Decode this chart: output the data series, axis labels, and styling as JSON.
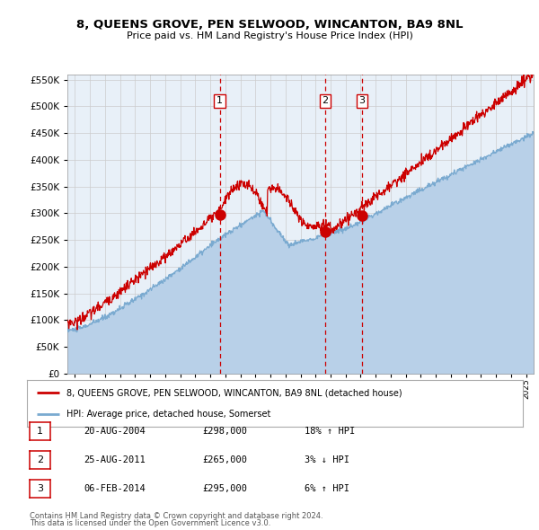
{
  "title": "8, QUEENS GROVE, PEN SELWOOD, WINCANTON, BA9 8NL",
  "subtitle": "Price paid vs. HM Land Registry's House Price Index (HPI)",
  "legend_label_red": "8, QUEENS GROVE, PEN SELWOOD, WINCANTON, BA9 8NL (detached house)",
  "legend_label_blue": "HPI: Average price, detached house, Somerset",
  "footnote1": "Contains HM Land Registry data © Crown copyright and database right 2024.",
  "footnote2": "This data is licensed under the Open Government Licence v3.0.",
  "transactions": [
    {
      "num": 1,
      "date": "20-AUG-2004",
      "price": "£298,000",
      "change": "18%",
      "dir": "↑",
      "year": 2004.64,
      "price_val": 298000
    },
    {
      "num": 2,
      "date": "25-AUG-2011",
      "price": "£265,000",
      "change": "3%",
      "dir": "↓",
      "year": 2011.64,
      "price_val": 265000
    },
    {
      "num": 3,
      "date": "06-FEB-2014",
      "price": "£295,000",
      "change": "6%",
      "dir": "↑",
      "year": 2014.09,
      "price_val": 295000
    }
  ],
  "plot_bg_color": "#e8f0f8",
  "red_line_color": "#cc0000",
  "blue_line_color": "#7aaad0",
  "blue_fill_color": "#b8d0e8",
  "grid_color": "#cccccc",
  "ylim": [
    0,
    560000
  ],
  "xlim_start": 1994.5,
  "xlim_end": 2025.5
}
